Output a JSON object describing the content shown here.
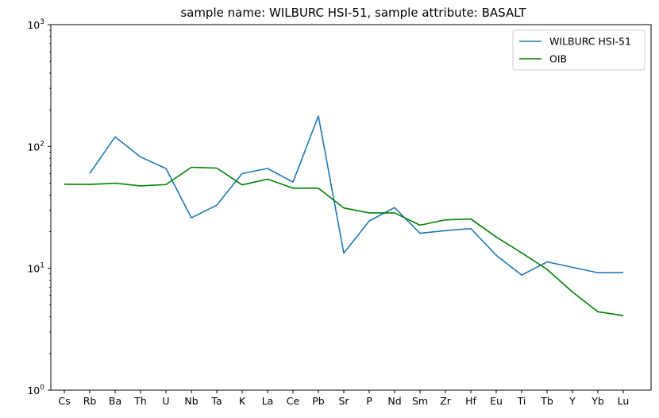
{
  "chart_data": {
    "type": "line",
    "title": "sample name: WILBURC HSI-51, sample attribute: BASALT",
    "xlabel": "",
    "ylabel": "",
    "yscale": "log",
    "ylim": [
      1,
      1000
    ],
    "ytick_labels": [
      {
        "value": 1,
        "base": "10",
        "exp": "0"
      },
      {
        "value": 10,
        "base": "10",
        "exp": "1"
      },
      {
        "value": 100,
        "base": "10",
        "exp": "2"
      },
      {
        "value": 1000,
        "base": "10",
        "exp": "3"
      }
    ],
    "categories": [
      "Cs",
      "Rb",
      "Ba",
      "Th",
      "U",
      "Nb",
      "Ta",
      "K",
      "La",
      "Ce",
      "Pb",
      "Sr",
      "P",
      "Nd",
      "Sm",
      "Zr",
      "Hf",
      "Eu",
      "Ti",
      "Tb",
      "Y",
      "Yb",
      "Lu"
    ],
    "grid": false,
    "legend_position": "top-right",
    "series": [
      {
        "name": "WILBURC HSI-51",
        "color": "#1f77b4",
        "values": [
          null,
          60,
          120,
          82,
          66,
          26,
          33,
          60,
          66,
          51,
          178,
          13.3,
          24.5,
          31.5,
          19.4,
          20.4,
          21.2,
          12.8,
          8.8,
          11.3,
          10.2,
          9.2,
          9.25
        ]
      },
      {
        "name": "OIB",
        "color": "#008000",
        "values": [
          49,
          48.8,
          50,
          47.5,
          48.7,
          67.5,
          66.5,
          48.4,
          54,
          45.5,
          45.5,
          31.3,
          28.5,
          28.5,
          22.6,
          25,
          25.4,
          18.1,
          13.4,
          9.8,
          6.4,
          4.4,
          4.1
        ]
      }
    ]
  }
}
